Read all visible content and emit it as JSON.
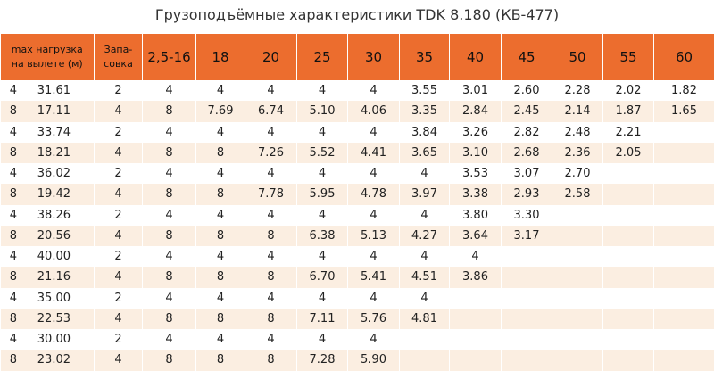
{
  "title": "Грузоподъёмные характеристики TDK 8.180 (КБ-477)",
  "header": {
    "col1_line1": "max нагрузка",
    "col1_line2": "на вылете (м)",
    "col2_line1": "Запа-",
    "col2_line2": "совка",
    "distances": [
      "2,5-16",
      "18",
      "20",
      "25",
      "30",
      "35",
      "40",
      "45",
      "50",
      "55",
      "60"
    ]
  },
  "rows": [
    {
      "mult": "4",
      "load": "31.61",
      "reeving": "2",
      "values": [
        "4",
        "4",
        "4",
        "4",
        "4",
        "3.55",
        "3.01",
        "2.60",
        "2.28",
        "2.02",
        "1.82"
      ]
    },
    {
      "mult": "8",
      "load": "17.11",
      "reeving": "4",
      "values": [
        "8",
        "7.69",
        "6.74",
        "5.10",
        "4.06",
        "3.35",
        "2.84",
        "2.45",
        "2.14",
        "1.87",
        "1.65"
      ]
    },
    {
      "mult": "4",
      "load": "33.74",
      "reeving": "2",
      "values": [
        "4",
        "4",
        "4",
        "4",
        "4",
        "3.84",
        "3.26",
        "2.82",
        "2.48",
        "2.21",
        ""
      ]
    },
    {
      "mult": "8",
      "load": "18.21",
      "reeving": "4",
      "values": [
        "8",
        "8",
        "7.26",
        "5.52",
        "4.41",
        "3.65",
        "3.10",
        "2.68",
        "2.36",
        "2.05",
        ""
      ]
    },
    {
      "mult": "4",
      "load": "36.02",
      "reeving": "2",
      "values": [
        "4",
        "4",
        "4",
        "4",
        "4",
        "4",
        "3.53",
        "3.07",
        "2.70",
        "",
        ""
      ]
    },
    {
      "mult": "8",
      "load": "19.42",
      "reeving": "4",
      "values": [
        "8",
        "8",
        "7.78",
        "5.95",
        "4.78",
        "3.97",
        "3.38",
        "2.93",
        "2.58",
        "",
        ""
      ]
    },
    {
      "mult": "4",
      "load": "38.26",
      "reeving": "2",
      "values": [
        "4",
        "4",
        "4",
        "4",
        "4",
        "4",
        "3.80",
        "3.30",
        "",
        "",
        ""
      ]
    },
    {
      "mult": "8",
      "load": "20.56",
      "reeving": "4",
      "values": [
        "8",
        "8",
        "8",
        "6.38",
        "5.13",
        "4.27",
        "3.64",
        "3.17",
        "",
        "",
        ""
      ]
    },
    {
      "mult": "4",
      "load": "40.00",
      "reeving": "2",
      "values": [
        "4",
        "4",
        "4",
        "4",
        "4",
        "4",
        "4",
        "",
        "",
        "",
        ""
      ]
    },
    {
      "mult": "8",
      "load": "21.16",
      "reeving": "4",
      "values": [
        "8",
        "8",
        "8",
        "6.70",
        "5.41",
        "4.51",
        "3.86",
        "",
        "",
        "",
        ""
      ]
    },
    {
      "mult": "4",
      "load": "35.00",
      "reeving": "2",
      "values": [
        "4",
        "4",
        "4",
        "4",
        "4",
        "4",
        "",
        "",
        "",
        "",
        ""
      ]
    },
    {
      "mult": "8",
      "load": "22.53",
      "reeving": "4",
      "values": [
        "8",
        "8",
        "8",
        "7.11",
        "5.76",
        "4.81",
        "",
        "",
        "",
        "",
        ""
      ]
    },
    {
      "mult": "4",
      "load": "30.00",
      "reeving": "2",
      "values": [
        "4",
        "4",
        "4",
        "4",
        "4",
        "",
        "",
        "",
        "",
        "",
        ""
      ]
    },
    {
      "mult": "8",
      "load": "23.02",
      "reeving": "4",
      "values": [
        "8",
        "8",
        "8",
        "7.28",
        "5.90",
        "",
        "",
        "",
        "",
        "",
        ""
      ]
    }
  ]
}
